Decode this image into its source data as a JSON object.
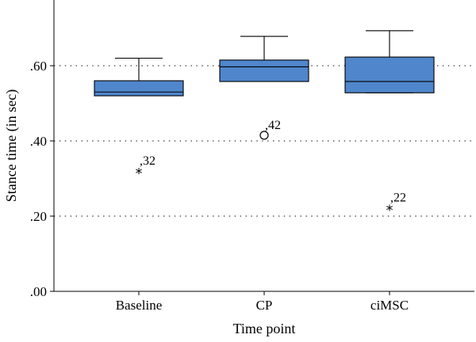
{
  "chart_data": {
    "type": "boxplot",
    "xlabel": "Time point",
    "ylabel": "Stance time (in sec)",
    "ylim": [
      0,
      0.78
    ],
    "grid": "horizontal-dotted",
    "yticks": [
      {
        "value": 0.0,
        "label": ".00"
      },
      {
        "value": 0.2,
        "label": ".20"
      },
      {
        "value": 0.4,
        "label": ".40"
      },
      {
        "value": 0.6,
        "label": ".60"
      }
    ],
    "categories": [
      "Baseline",
      "CP",
      "ciMSC"
    ],
    "boxes": [
      {
        "category": "Baseline",
        "min": 0.52,
        "q1": 0.52,
        "median": 0.53,
        "q3": 0.56,
        "max": 0.62,
        "outliers": [
          {
            "value": 0.32,
            "label": ",32",
            "marker": "star"
          }
        ]
      },
      {
        "category": "CP",
        "min": 0.558,
        "q1": 0.558,
        "median": 0.597,
        "q3": 0.615,
        "max": 0.678,
        "outliers": [
          {
            "value": 0.415,
            "label": ",42",
            "marker": "circle"
          }
        ]
      },
      {
        "category": "ciMSC",
        "min": 0.528,
        "q1": 0.528,
        "median": 0.558,
        "q3": 0.623,
        "max": 0.693,
        "outliers": [
          {
            "value": 0.222,
            "label": ",22",
            "marker": "star"
          }
        ]
      }
    ],
    "box_color": "#4f86cc"
  }
}
